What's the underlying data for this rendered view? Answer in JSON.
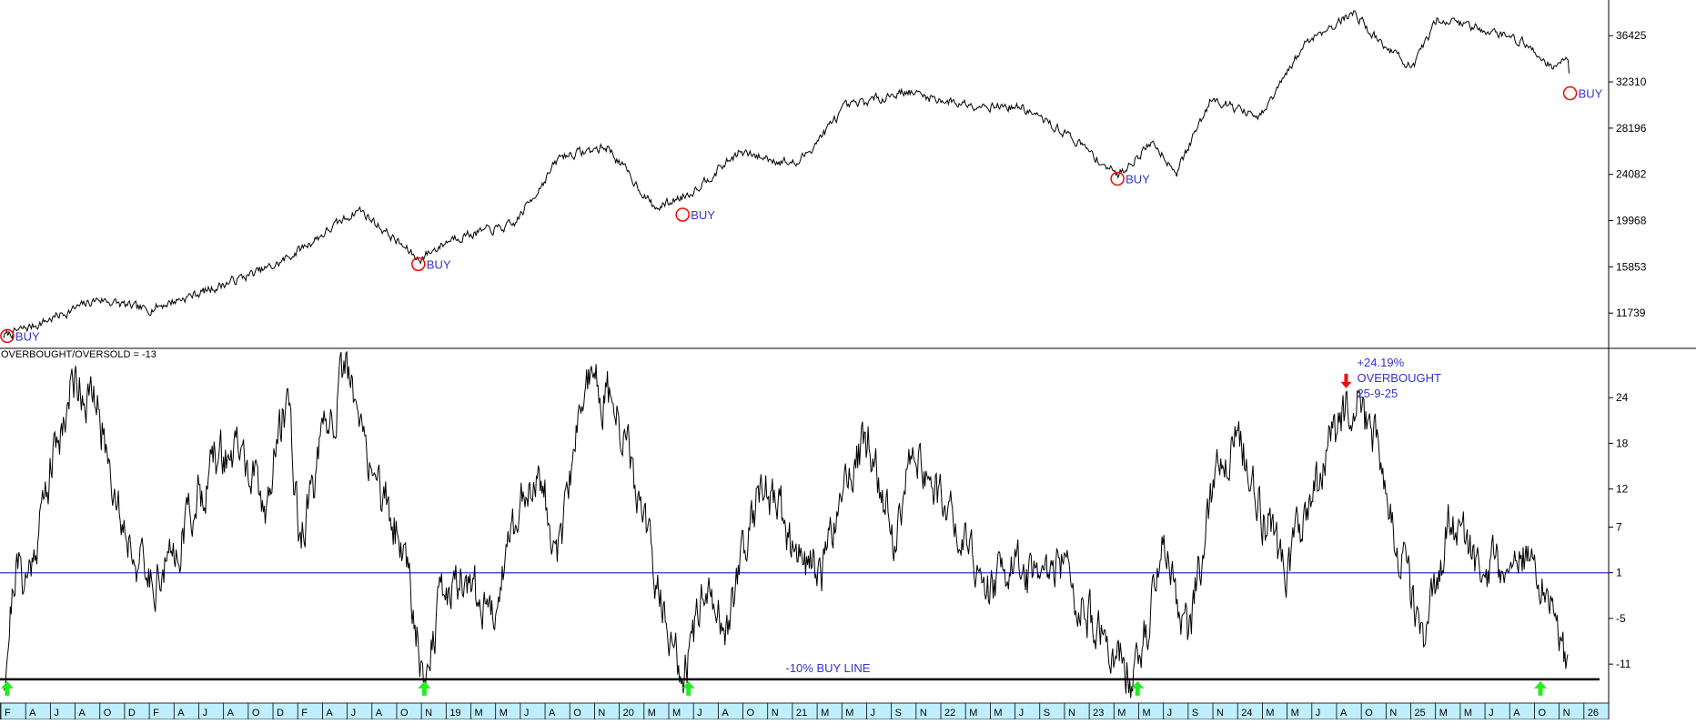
{
  "colors": {
    "price_line": "#000000",
    "oscillator_line": "#000000",
    "buy_circle": "#ff0000",
    "buy_text": "#3333cc",
    "zero_line": "#3333dd",
    "annotation_text": "#3333cc",
    "up_arrow": "#22ee22",
    "down_arrow": "#ee1111",
    "axis_band": "#bfefff",
    "grid": "#000000"
  },
  "chart_data": [
    {
      "type": "line",
      "title": "",
      "ylim": [
        8600,
        39600
      ],
      "y_ticks": [
        36425,
        32310,
        28196,
        24082,
        19968,
        15853,
        11739
      ],
      "anchors": [
        [
          0,
          9700
        ],
        [
          3,
          10800
        ],
        [
          8,
          13000
        ],
        [
          12,
          12000
        ],
        [
          17,
          13700
        ],
        [
          23,
          16000
        ],
        [
          27,
          18800
        ],
        [
          30,
          21000
        ],
        [
          35,
          16500
        ],
        [
          38,
          18500
        ],
        [
          43,
          19500
        ],
        [
          47,
          25700
        ],
        [
          51,
          26500
        ],
        [
          55,
          21000
        ],
        [
          58,
          22500
        ],
        [
          62,
          26000
        ],
        [
          67,
          25000
        ],
        [
          71,
          30000
        ],
        [
          76,
          31500
        ],
        [
          80,
          30500
        ],
        [
          86,
          30000
        ],
        [
          90,
          27500
        ],
        [
          94,
          24000
        ],
        [
          97,
          27000
        ],
        [
          99,
          24300
        ],
        [
          102,
          31000
        ],
        [
          106,
          29000
        ],
        [
          110,
          36000
        ],
        [
          114,
          38500
        ],
        [
          116,
          36000
        ],
        [
          119,
          33500
        ],
        [
          121,
          38000
        ],
        [
          125,
          37000
        ],
        [
          128,
          36000
        ],
        [
          131,
          33500
        ],
        [
          132,
          34800
        ],
        [
          132.2,
          31500
        ]
      ],
      "buy_signals": [
        {
          "x": 0.3,
          "y": 9700,
          "label": "BUY"
        },
        {
          "x": 35,
          "y": 16100,
          "label": "BUY"
        },
        {
          "x": 57.3,
          "y": 20500,
          "label": "BUY"
        },
        {
          "x": 94,
          "y": 23700,
          "label": "BUY"
        },
        {
          "x": 132.2,
          "y": 31300,
          "label": "BUY"
        }
      ]
    },
    {
      "type": "line",
      "title": "OVERBOUGHT/OVERSOLD",
      "current_value": "-13",
      "ylim": [
        -16,
        30
      ],
      "y_ticks": [
        24,
        18,
        12,
        7,
        1,
        -5,
        -11
      ],
      "y_tick_labels": [
        "24",
        "18",
        "12",
        "7",
        "1",
        "-5",
        "-11"
      ],
      "zero_line": 1,
      "buy_line": {
        "value": -13,
        "label": "-10% BUY LINE",
        "x_label_pos": 66
      },
      "anchors": [
        [
          0,
          -13
        ],
        [
          1,
          2
        ],
        [
          2,
          0
        ],
        [
          4,
          15
        ],
        [
          6,
          27
        ],
        [
          8,
          22
        ],
        [
          10,
          8
        ],
        [
          12,
          0
        ],
        [
          14,
          2
        ],
        [
          16,
          10
        ],
        [
          18,
          16
        ],
        [
          20,
          17
        ],
        [
          22,
          9
        ],
        [
          24,
          25
        ],
        [
          25,
          5
        ],
        [
          27,
          18
        ],
        [
          29,
          28
        ],
        [
          30,
          20
        ],
        [
          32,
          11
        ],
        [
          34,
          3
        ],
        [
          35.5,
          -13
        ],
        [
          37,
          -2
        ],
        [
          39,
          1
        ],
        [
          41,
          -5
        ],
        [
          43,
          7
        ],
        [
          45,
          15
        ],
        [
          47,
          3
        ],
        [
          49,
          27
        ],
        [
          51,
          24
        ],
        [
          53,
          15
        ],
        [
          55,
          0
        ],
        [
          57.3,
          -13
        ],
        [
          59,
          -3
        ],
        [
          61,
          -6
        ],
        [
          63,
          9
        ],
        [
          65,
          12
        ],
        [
          67,
          2
        ],
        [
          69,
          1
        ],
        [
          71,
          14
        ],
        [
          73,
          18
        ],
        [
          75,
          5
        ],
        [
          77,
          18
        ],
        [
          79,
          10
        ],
        [
          81,
          8
        ],
        [
          83,
          -2
        ],
        [
          85,
          2
        ],
        [
          87,
          -1
        ],
        [
          89,
          3
        ],
        [
          91,
          -4
        ],
        [
          93,
          -8
        ],
        [
          95.5,
          -13
        ],
        [
          98,
          5
        ],
        [
          100,
          -8
        ],
        [
          102,
          12
        ],
        [
          104,
          20
        ],
        [
          106,
          10
        ],
        [
          108,
          1
        ],
        [
          110,
          8
        ],
        [
          112,
          18
        ],
        [
          114,
          24
        ],
        [
          116,
          17
        ],
        [
          118,
          2
        ],
        [
          120,
          -8
        ],
        [
          122,
          8
        ],
        [
          124,
          3
        ],
        [
          126,
          1
        ],
        [
          128,
          3
        ],
        [
          130,
          -2
        ],
        [
          131,
          -3
        ],
        [
          132,
          -13
        ]
      ],
      "down_marker": {
        "x": 113.3,
        "y": 25
      },
      "annotation": [
        "+24.19%",
        "OVERBOUGHT",
        "25-9-25"
      ],
      "up_markers": [
        0.3,
        35.5,
        57.8,
        95.7,
        129.7
      ]
    }
  ],
  "x_axis": {
    "labels": [
      "F",
      "A",
      "J",
      "A",
      "O",
      "D",
      "F",
      "A",
      "J",
      "A",
      "O",
      "D",
      "F",
      "A",
      "J",
      "A",
      "O",
      "N",
      "19",
      "M",
      "M",
      "J",
      "A",
      "O",
      "N",
      "20",
      "M",
      "M",
      "J",
      "A",
      "O",
      "N",
      "21",
      "M",
      "M",
      "J",
      "S",
      "N",
      "22",
      "M",
      "M",
      "J",
      "S",
      "N",
      "23",
      "M",
      "M",
      "J",
      "S",
      "N",
      "24",
      "M",
      "M",
      "J",
      "A",
      "O",
      "N",
      "25",
      "M",
      "M",
      "J",
      "A",
      "O",
      "N",
      "26"
    ]
  }
}
